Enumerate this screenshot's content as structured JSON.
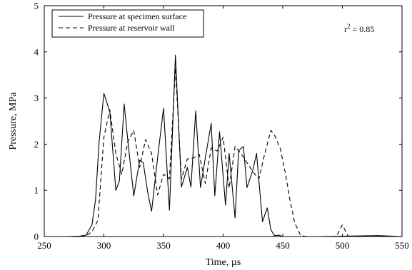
{
  "chart_data": {
    "type": "line",
    "xlabel": "Time, µs",
    "ylabel": "Pressure, MPa",
    "xlim": [
      250,
      550
    ],
    "ylim": [
      0,
      5
    ],
    "xticks": [
      "250",
      "300",
      "350",
      "400",
      "450",
      "500",
      "550"
    ],
    "yticks": [
      "0",
      "1",
      "2",
      "3",
      "4",
      "5"
    ],
    "grid": false,
    "legend_position": "top-left",
    "annotation": {
      "base": "r",
      "sup": "2",
      "rest": " = 0.85"
    },
    "series": [
      {
        "name": "Pressure at specimen surface",
        "style": "solid",
        "color": "#000000",
        "x": [
          250,
          270,
          280,
          285,
          290,
          293,
          296,
          300,
          305,
          310,
          313,
          317,
          320,
          325,
          330,
          333,
          337,
          340,
          345,
          350,
          355,
          360,
          365,
          370,
          373,
          377,
          381,
          385,
          390,
          393,
          397,
          402,
          405,
          410,
          413,
          417,
          420,
          425,
          428,
          433,
          437,
          440,
          443,
          447,
          450,
          453,
          458,
          462,
          465,
          470,
          475,
          480,
          530,
          550
        ],
        "y": [
          0,
          0,
          0.01,
          0.03,
          0.25,
          0.8,
          2.05,
          3.1,
          2.7,
          1.0,
          1.2,
          2.87,
          2.1,
          0.88,
          1.65,
          1.6,
          0.92,
          0.55,
          1.7,
          2.78,
          0.57,
          3.93,
          1.07,
          1.5,
          1.07,
          2.72,
          1.06,
          1.7,
          2.45,
          0.88,
          2.27,
          0.68,
          1.8,
          0.4,
          1.86,
          1.95,
          1.06,
          1.45,
          1.8,
          0.32,
          0.62,
          0.15,
          0.02,
          0.03,
          0.0,
          0.0,
          0.0,
          0.0,
          0.0,
          0.0,
          0.0,
          0.0,
          0.02,
          0.0
        ]
      },
      {
        "name": "Pressure at reservoir wall",
        "style": "dashed",
        "color": "#000000",
        "x": [
          250,
          270,
          280,
          285,
          290,
          295,
          300,
          305,
          310,
          315,
          320,
          325,
          330,
          335,
          340,
          345,
          350,
          355,
          360,
          365,
          370,
          375,
          380,
          385,
          390,
          395,
          400,
          405,
          410,
          415,
          420,
          425,
          430,
          435,
          440,
          443,
          448,
          452,
          456,
          460,
          465,
          470,
          490,
          495,
          500,
          505,
          510,
          550
        ],
        "y": [
          0,
          0,
          0.01,
          0.02,
          0.1,
          0.35,
          2.15,
          2.75,
          1.8,
          1.35,
          2.05,
          2.3,
          1.5,
          2.1,
          1.8,
          0.9,
          1.35,
          1.25,
          3.65,
          1.25,
          1.68,
          1.7,
          1.78,
          1.15,
          1.92,
          1.85,
          2.15,
          1.05,
          1.95,
          1.8,
          1.6,
          1.4,
          1.25,
          1.8,
          2.3,
          2.2,
          1.9,
          1.4,
          0.8,
          0.3,
          0.02,
          0.0,
          0.0,
          0.0,
          0.25,
          0.0,
          0.0,
          0.0
        ]
      }
    ]
  }
}
